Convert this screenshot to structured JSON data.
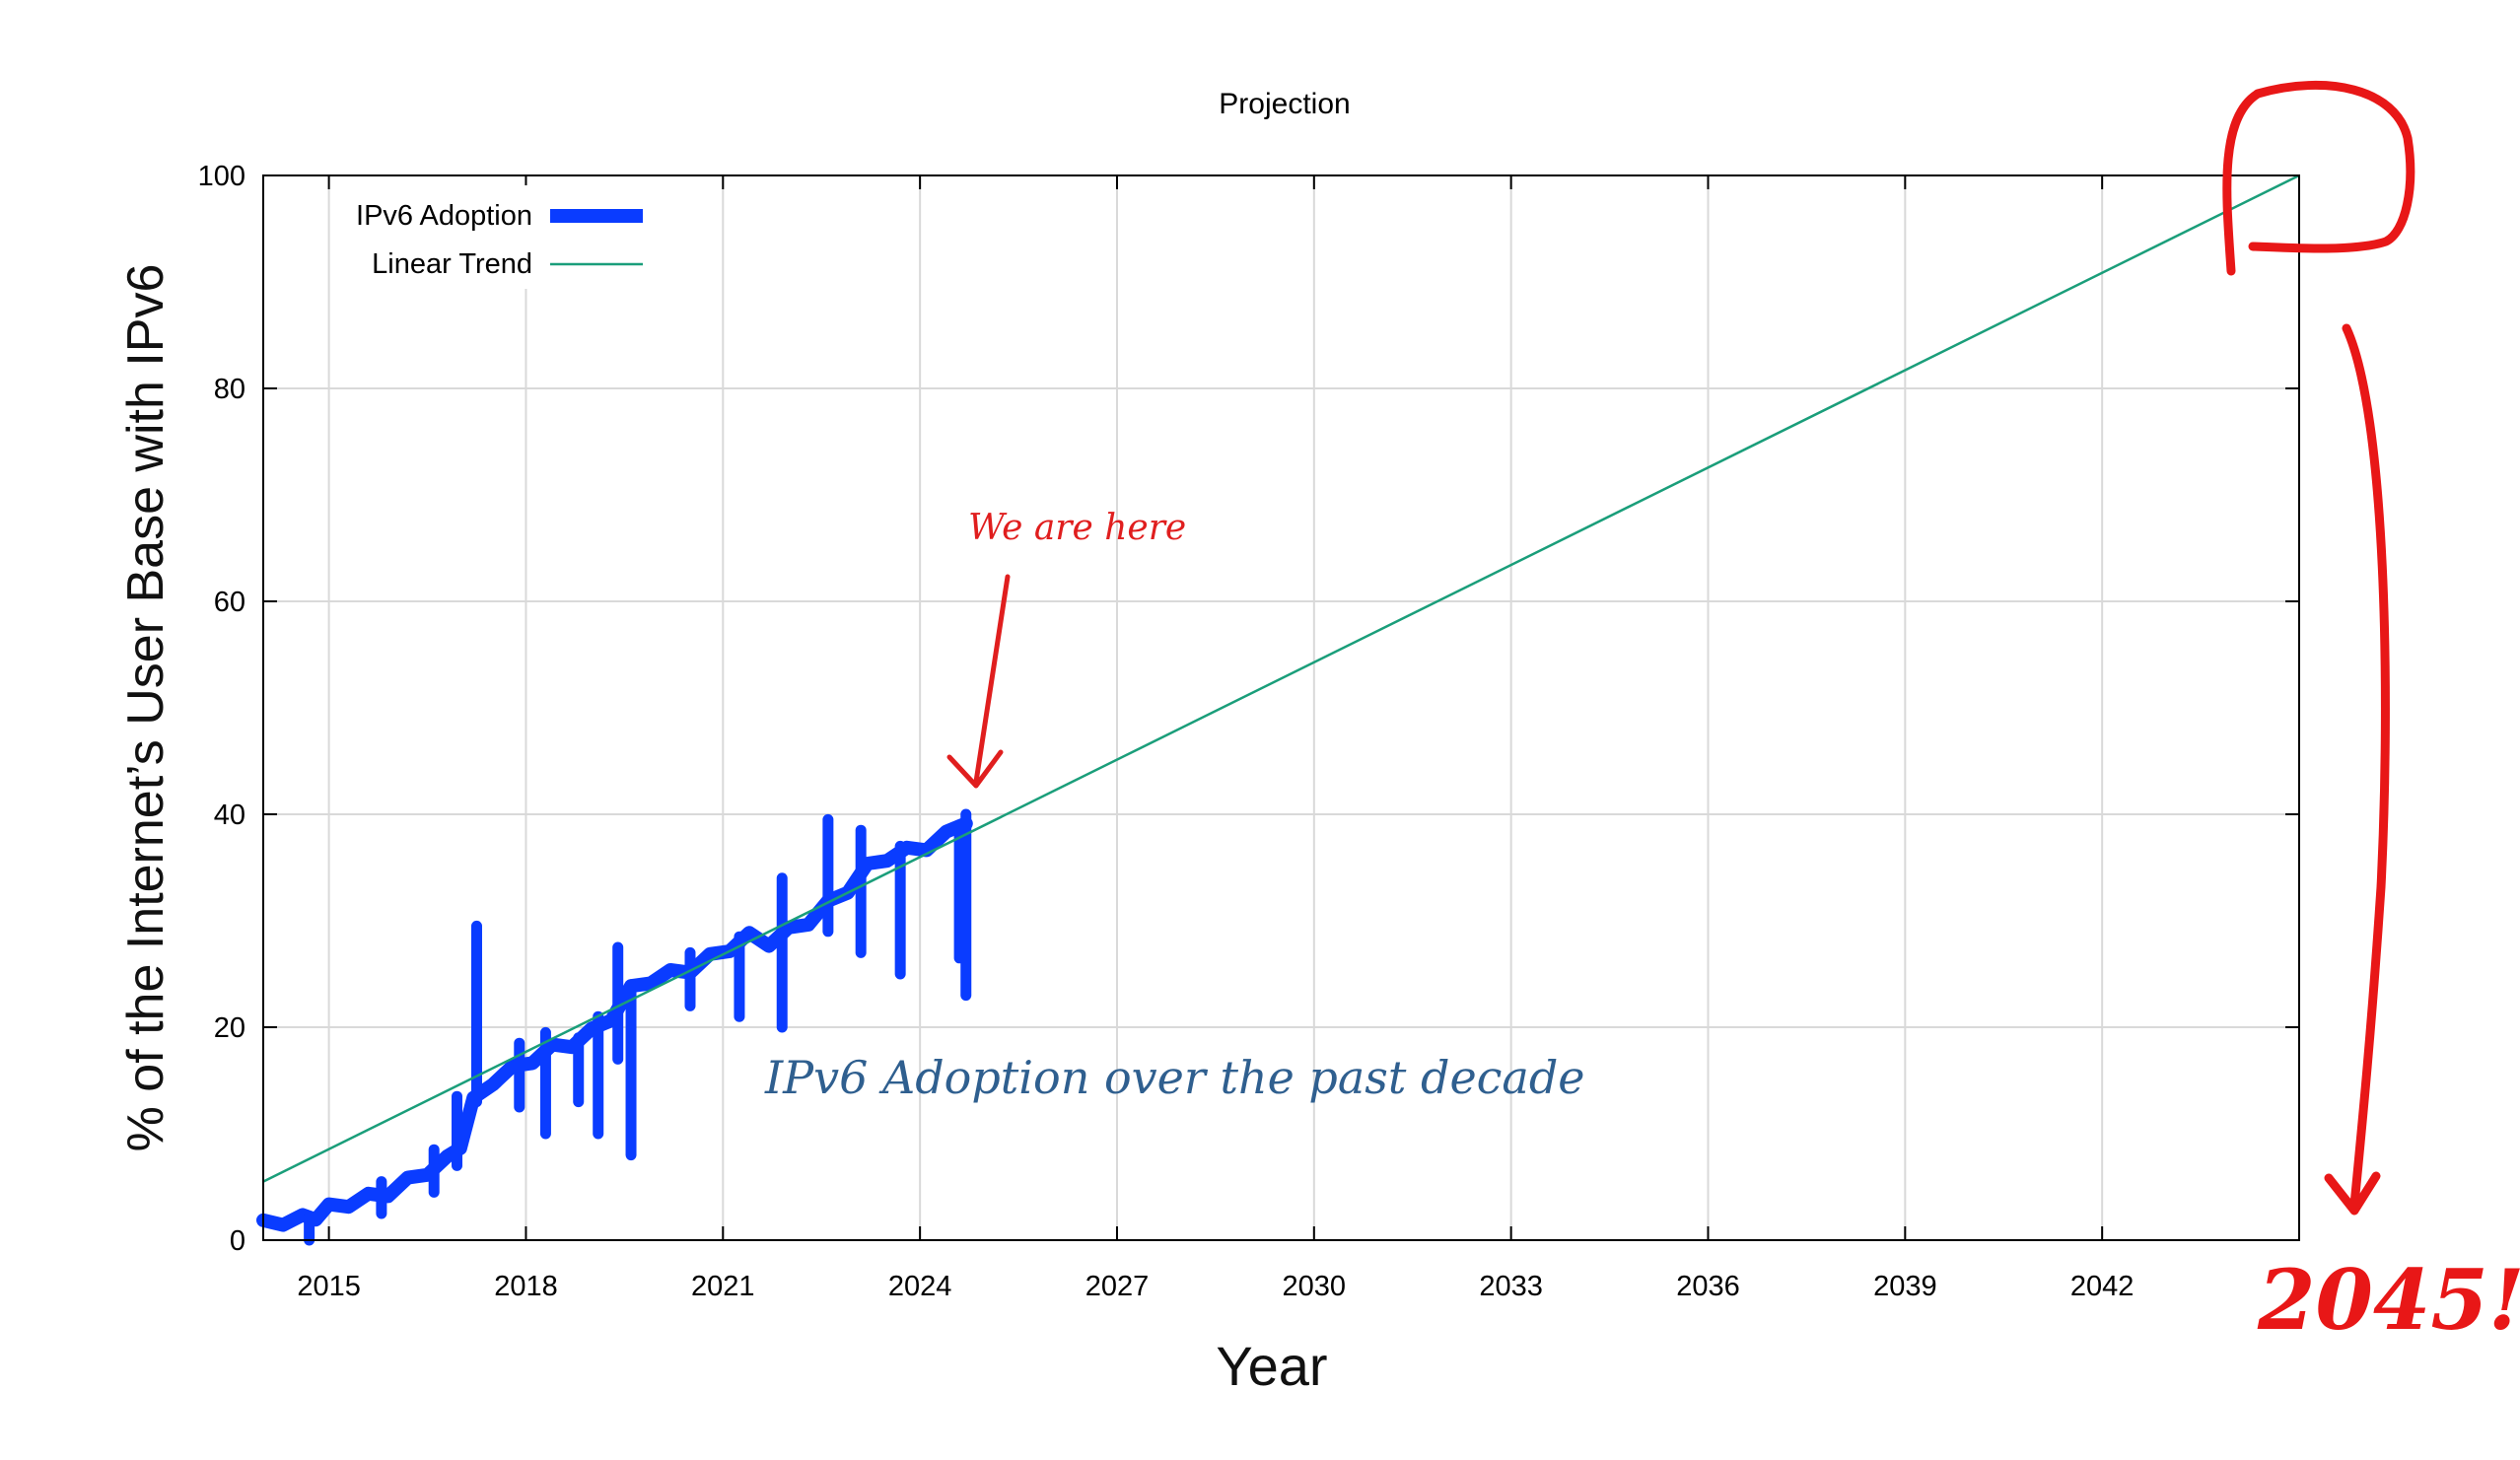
{
  "chart_data": {
    "type": "line",
    "title": "Projection",
    "xlabel": "Year",
    "ylabel": "% of the Internet’s User Base with IPv6",
    "xlim": [
      2014,
      2045
    ],
    "ylim": [
      0,
      100
    ],
    "x_ticks": [
      2015,
      2018,
      2021,
      2024,
      2027,
      2030,
      2033,
      2036,
      2039,
      2042
    ],
    "y_ticks": [
      0,
      20,
      40,
      60,
      80,
      100
    ],
    "grid": true,
    "legend": "top-left",
    "series": [
      {
        "name": "IPv6 Adoption",
        "color": "#0a3cff",
        "x": [
          2014.0,
          2014.3,
          2014.6,
          2014.8,
          2015.0,
          2015.3,
          2015.6,
          2015.9,
          2016.2,
          2016.5,
          2016.8,
          2017.0,
          2017.2,
          2017.5,
          2017.8,
          2018.1,
          2018.4,
          2018.7,
          2019.0,
          2019.3,
          2019.6,
          2019.9,
          2020.2,
          2020.5,
          2020.8,
          2021.1,
          2021.4,
          2021.7,
          2022.0,
          2022.3,
          2022.6,
          2022.9,
          2023.2,
          2023.5,
          2023.8,
          2024.1,
          2024.4,
          2024.7
        ],
        "y": [
          1.5,
          1.8,
          2.0,
          2.3,
          3.0,
          3.5,
          4.0,
          4.5,
          5.5,
          6.5,
          7.5,
          9.0,
          13.0,
          15.0,
          16.0,
          17.0,
          18.0,
          18.5,
          19.5,
          21.0,
          23.5,
          24.5,
          25.0,
          25.5,
          26.5,
          27.5,
          28.5,
          28.0,
          29.0,
          30.0,
          31.5,
          33.0,
          35.0,
          36.0,
          36.5,
          37.0,
          38.0,
          39.5
        ],
        "spikes": [
          {
            "x": 2014.7,
            "y_low": 0.0,
            "y_high": 2.2
          },
          {
            "x": 2015.8,
            "y_low": 2.5,
            "y_high": 5.5
          },
          {
            "x": 2016.6,
            "y_low": 4.5,
            "y_high": 8.5
          },
          {
            "x": 2016.95,
            "y_low": 7.0,
            "y_high": 13.5
          },
          {
            "x": 2017.25,
            "y_low": 13.0,
            "y_high": 29.5
          },
          {
            "x": 2017.9,
            "y_low": 12.5,
            "y_high": 18.5
          },
          {
            "x": 2018.3,
            "y_low": 10.0,
            "y_high": 19.5
          },
          {
            "x": 2018.8,
            "y_low": 13.0,
            "y_high": 19.0
          },
          {
            "x": 2019.1,
            "y_low": 10.0,
            "y_high": 21.0
          },
          {
            "x": 2019.4,
            "y_low": 17.0,
            "y_high": 27.5
          },
          {
            "x": 2019.6,
            "y_low": 8.0,
            "y_high": 24.0
          },
          {
            "x": 2020.5,
            "y_low": 22.0,
            "y_high": 27.0
          },
          {
            "x": 2021.25,
            "y_low": 21.0,
            "y_high": 28.5
          },
          {
            "x": 2021.9,
            "y_low": 20.0,
            "y_high": 34.0
          },
          {
            "x": 2022.6,
            "y_low": 29.0,
            "y_high": 39.5
          },
          {
            "x": 2023.1,
            "y_low": 27.0,
            "y_high": 38.5
          },
          {
            "x": 2023.7,
            "y_low": 25.0,
            "y_high": 37.0
          },
          {
            "x": 2024.6,
            "y_low": 26.5,
            "y_high": 39.0
          },
          {
            "x": 2024.7,
            "y_low": 23.0,
            "y_high": 40.0
          }
        ]
      },
      {
        "name": "Linear Trend",
        "color": "#1a9e7a",
        "x": [
          2014,
          2045
        ],
        "y": [
          5.5,
          100
        ]
      }
    ],
    "annotations": [
      {
        "text": "We are here",
        "color": "#e01e1e",
        "points_to": {
          "x": 2024.7,
          "y": 42.0
        }
      },
      {
        "text": "IPv6 Adoption over the past decade",
        "color": "#2f5f8f"
      },
      {
        "text": "2045!",
        "color": "#e81717"
      }
    ]
  }
}
